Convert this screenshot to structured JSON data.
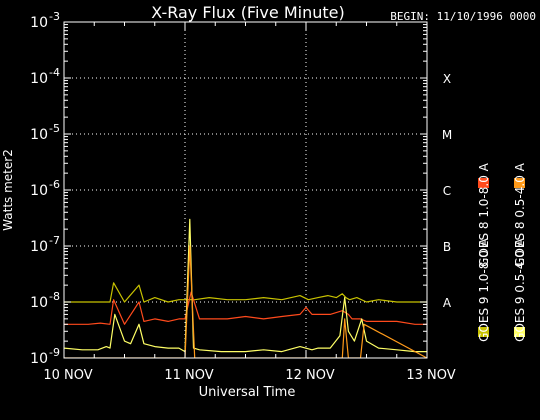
{
  "colors": {
    "background": "#000000",
    "axes": "#ffffff",
    "grid": "#ffffff",
    "goes8_long": "#ff4a1c",
    "goes8_short": "#ff9a1a",
    "goes9_long": "#c8c200",
    "goes9_short": "#ffff66"
  },
  "chart_data": {
    "type": "line",
    "title": "X-Ray Flux (Five Minute)",
    "subtitle": "BEGIN: 11/10/1996 0000",
    "xlabel": "Universal Time",
    "ylabel": "Watts meter2",
    "y_scale": "log",
    "xlim": [
      "10 NOV",
      "13 NOV"
    ],
    "ylim": [
      1e-09,
      0.001
    ],
    "y_ticks": [
      {
        "value": 1e-09,
        "mantissa": "10",
        "exp": "-9"
      },
      {
        "value": 1e-08,
        "mantissa": "10",
        "exp": "-8"
      },
      {
        "value": 1e-07,
        "mantissa": "10",
        "exp": "-7"
      },
      {
        "value": 1e-06,
        "mantissa": "10",
        "exp": "-6"
      },
      {
        "value": 1e-05,
        "mantissa": "10",
        "exp": "-5"
      },
      {
        "value": 0.0001,
        "mantissa": "10",
        "exp": "-4"
      },
      {
        "value": 0.001,
        "mantissa": "10",
        "exp": "-3"
      }
    ],
    "x_ticks": [
      "10 NOV",
      "11 NOV",
      "12 NOV",
      "13 NOV"
    ],
    "vertical_grid_at": [
      "11 NOV",
      "12 NOV"
    ],
    "horizontal_grid": [
      1e-08,
      1e-07,
      1e-06,
      1e-05,
      0.0001
    ],
    "flare_classes": [
      {
        "label": "A",
        "value": 1e-08
      },
      {
        "label": "B",
        "value": 1e-07
      },
      {
        "label": "C",
        "value": 1e-06
      },
      {
        "label": "M",
        "value": 1e-05
      },
      {
        "label": "X",
        "value": 0.0001
      }
    ],
    "legend_placement": "right-vertical",
    "legend": [
      {
        "label": "GOES 8 1.0-8.0 A",
        "color_key": "goes8_long"
      },
      {
        "label": "GOES 8 0.5-4.0 A",
        "color_key": "goes8_short"
      },
      {
        "label": "GOES 9 1.0-8.0 A",
        "color_key": "goes9_long"
      },
      {
        "label": "GOES 9 0.5-4.0 A",
        "color_key": "goes9_short"
      }
    ],
    "series": [
      {
        "name": "GOES 9 1.0-8.0 A",
        "color_key": "goes9_long",
        "x_days": [
          0.0,
          0.15,
          0.2,
          0.28,
          0.38,
          0.41,
          0.5,
          0.62,
          0.66,
          0.75,
          0.86,
          0.95,
          1.0,
          1.08,
          1.2,
          1.35,
          1.5,
          1.65,
          1.8,
          1.95,
          2.02,
          2.1,
          2.18,
          2.25,
          2.3,
          2.33,
          2.36,
          2.42,
          2.5,
          2.6,
          2.75,
          2.9,
          3.0
        ],
        "values": [
          1e-08,
          1e-08,
          1e-08,
          1e-08,
          1e-08,
          2.2e-08,
          1e-08,
          2e-08,
          1e-08,
          1.2e-08,
          1e-08,
          1.1e-08,
          1.1e-08,
          1.1e-08,
          1.2e-08,
          1.1e-08,
          1.1e-08,
          1.2e-08,
          1.1e-08,
          1.3e-08,
          1.1e-08,
          1.2e-08,
          1.3e-08,
          1.2e-08,
          1.4e-08,
          1.2e-08,
          1.1e-08,
          1.2e-08,
          1e-08,
          1.1e-08,
          1e-08,
          1e-08,
          1e-08
        ]
      },
      {
        "name": "GOES 8 1.0-8.0 A",
        "color_key": "goes8_long",
        "x_days": [
          0.0,
          0.1,
          0.2,
          0.3,
          0.38,
          0.41,
          0.5,
          0.62,
          0.66,
          0.75,
          0.86,
          0.95,
          1.0,
          1.05,
          1.12,
          1.2,
          1.35,
          1.5,
          1.65,
          1.8,
          1.95,
          2.0,
          2.05,
          2.1,
          2.2,
          2.3,
          2.35,
          2.38,
          2.45,
          2.5,
          2.6,
          2.75,
          2.9,
          3.0
        ],
        "values": [
          4e-09,
          4e-09,
          4e-09,
          4.2e-09,
          4e-09,
          1.1e-08,
          4e-09,
          1e-08,
          4.5e-09,
          5e-09,
          4.5e-09,
          5e-09,
          5e-09,
          1.5e-08,
          5e-09,
          5e-09,
          5e-09,
          5.5e-09,
          5e-09,
          5.5e-09,
          6e-09,
          8e-09,
          6e-09,
          6e-09,
          6e-09,
          7e-09,
          6e-09,
          5e-09,
          5e-09,
          4.5e-09,
          4.5e-09,
          4.5e-09,
          4e-09,
          4e-09
        ]
      },
      {
        "name": "GOES 9 0.5-4.0 A",
        "color_key": "goes9_short",
        "x_days": [
          0.0,
          0.15,
          0.28,
          0.35,
          0.38,
          0.42,
          0.5,
          0.55,
          0.62,
          0.66,
          0.75,
          0.86,
          0.95,
          1.0,
          1.04,
          1.07,
          1.12,
          1.3,
          1.5,
          1.65,
          1.8,
          1.95,
          2.05,
          2.1,
          2.2,
          2.28,
          2.32,
          2.35,
          2.4,
          2.46,
          2.5,
          2.6,
          2.75,
          2.9,
          3.0
        ],
        "values": [
          1.5e-09,
          1.4e-09,
          1.4e-09,
          1.6e-09,
          1.5e-09,
          6e-09,
          2e-09,
          1.8e-09,
          4e-09,
          1.8e-09,
          1.6e-09,
          1.5e-09,
          1.5e-09,
          1.3e-09,
          3e-07,
          1.5e-09,
          1.4e-09,
          1.3e-09,
          1.3e-09,
          1.4e-09,
          1.3e-09,
          1.6e-09,
          1.4e-09,
          1.5e-09,
          1.5e-09,
          2.5e-09,
          1.2e-08,
          3e-09,
          2e-09,
          5e-09,
          2e-09,
          1.5e-09,
          1.4e-09,
          1.3e-09,
          1.3e-09
        ]
      },
      {
        "name": "GOES 8 0.5-4.0 A",
        "color_key": "goes8_short",
        "x_days": [
          0.0,
          0.42,
          0.48,
          1.0,
          1.04,
          1.08,
          2.0,
          2.3,
          2.32,
          2.35,
          2.45,
          2.48,
          3.0
        ],
        "values": [
          1e-09,
          1e-09,
          1e-09,
          1e-09,
          1e-07,
          1e-09,
          1e-09,
          1e-09,
          5e-09,
          1e-09,
          1e-09,
          4e-09,
          1e-09
        ]
      }
    ]
  }
}
